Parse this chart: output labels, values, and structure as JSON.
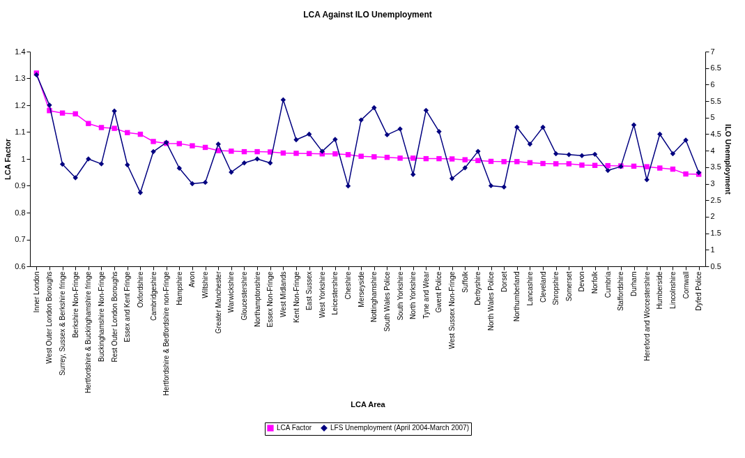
{
  "chart_data": {
    "type": "line",
    "title": "LCA Against ILO Unemployment",
    "xlabel": "LCA Area",
    "ylabel": "LCA Factor",
    "y2label": "ILO Unemployment",
    "categories": [
      "Inner London",
      "West Outer London Boroughs",
      "Surrey, Sussex & Berkshire fringe",
      "Berkshire Non-Fringe",
      "Hertfordshire & Buckinghamshire fringe",
      "Buckinghamshire Non-Fringe",
      "Rest Outer London Boroughs",
      "Essex and Kent Fringe",
      "Oxfordshire",
      "Cambridgeshire",
      "Hertfordshire & Bedfordshire non-Fringe",
      "Hampshire",
      "Avon",
      "Wiltshire",
      "Greater Manchester",
      "Warwickshire",
      "Gloucestershire",
      "Northamptonshire",
      "Essex Non-Fringe",
      "West Midlands",
      "Kent Non-Fringe",
      "East Sussex",
      "West Yorkshire",
      "Leicestershire",
      "Cheshire",
      "Merseyside",
      "Nottinghamshire",
      "South Wales Police",
      "South Yorkshire",
      "North Yorkshire",
      "Tyne and Wear",
      "Gwent Police",
      "West Sussex Non-Fringe",
      "Suffolk",
      "Derbyshire",
      "North Wales Police",
      "Dorset",
      "Northumberland",
      "Lancashire",
      "Cleveland",
      "Shropshire",
      "Somerset",
      "Devon",
      "Norfolk",
      "Cumbria",
      "Staffordshire",
      "Durham",
      "Hereford and Worcestershire",
      "Humberside",
      "Lincolnshire",
      "Cornwall",
      "Dyfed Police"
    ],
    "series": [
      {
        "name": "LCA Factor",
        "color": "#ff00ff",
        "marker": "square",
        "values": [
          1.32,
          1.18,
          1.171,
          1.168,
          1.132,
          1.117,
          1.114,
          1.098,
          1.092,
          1.065,
          1.058,
          1.057,
          1.049,
          1.043,
          1.031,
          1.029,
          1.027,
          1.027,
          1.026,
          1.022,
          1.021,
          1.02,
          1.019,
          1.019,
          1.016,
          1.01,
          1.008,
          1.006,
          1.003,
          1.003,
          1.001,
          1.001,
          1.0,
          0.997,
          0.994,
          0.991,
          0.99,
          0.99,
          0.986,
          0.983,
          0.982,
          0.982,
          0.977,
          0.976,
          0.975,
          0.974,
          0.973,
          0.971,
          0.966,
          0.962,
          0.944,
          0.943
        ]
      },
      {
        "name": "LFS Unemployment (April 2004-March 2007)",
        "color": "#000080",
        "marker": "diamond",
        "axis": "y2",
        "values": [
          6.3,
          5.38,
          3.59,
          3.18,
          3.75,
          3.6,
          5.2,
          3.57,
          2.73,
          3.97,
          4.25,
          3.47,
          3.0,
          3.04,
          4.2,
          3.35,
          3.63,
          3.75,
          3.63,
          5.54,
          4.33,
          4.5,
          3.98,
          4.34,
          2.93,
          4.93,
          5.3,
          4.48,
          4.66,
          3.28,
          5.22,
          4.58,
          3.16,
          3.48,
          3.98,
          2.94,
          2.9,
          4.71,
          4.2,
          4.71,
          3.91,
          3.88,
          3.85,
          3.89,
          3.4,
          3.52,
          4.78,
          3.12,
          4.5,
          3.91,
          4.32,
          3.34
        ]
      }
    ],
    "ylim": [
      0.6,
      1.4
    ],
    "yticks": [
      0.6,
      0.7,
      0.8,
      0.9,
      1,
      1.1,
      1.2,
      1.3,
      1.4
    ],
    "y2lim": [
      0.5,
      7
    ],
    "y2ticks": [
      0.5,
      1,
      1.5,
      2,
      2.5,
      3,
      3.5,
      4,
      4.5,
      5,
      5.5,
      6,
      6.5,
      7
    ],
    "grid": false,
    "legend": "bottom",
    "line_style": "solid"
  }
}
